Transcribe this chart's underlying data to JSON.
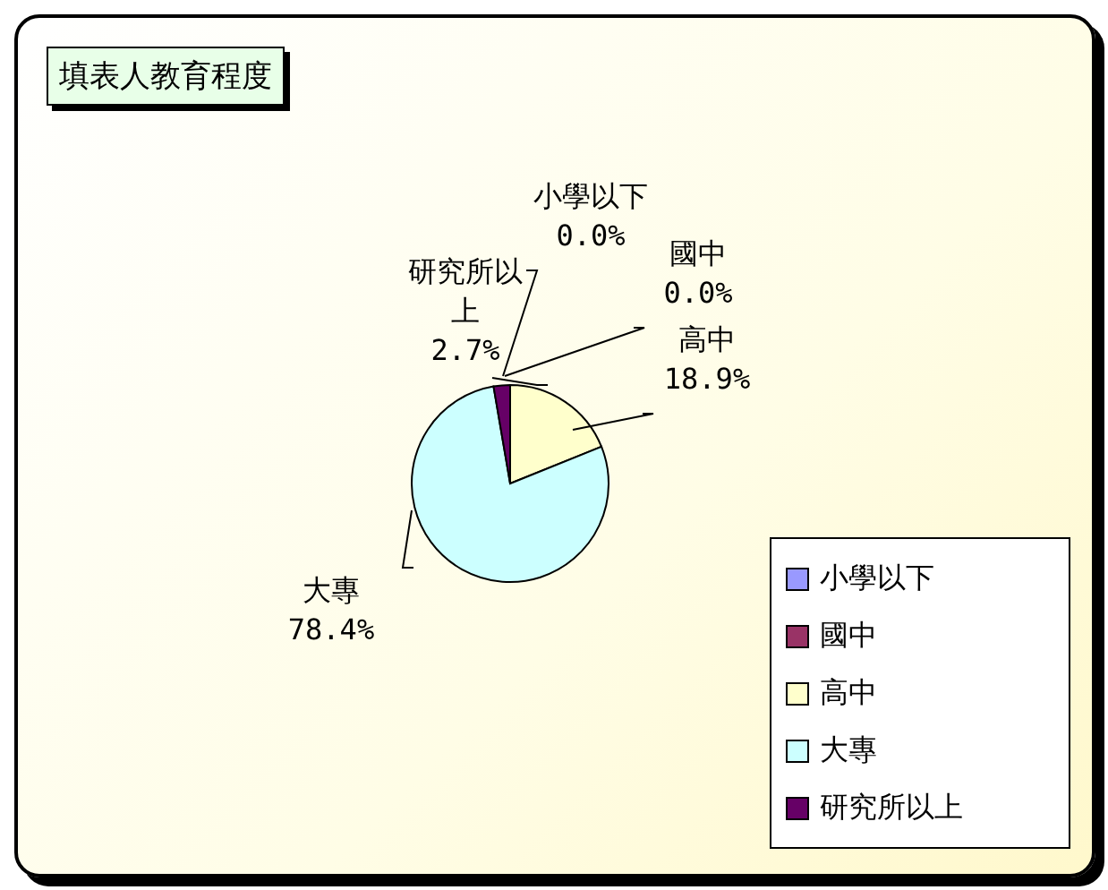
{
  "chart_data": {
    "type": "pie",
    "title": "填表人教育程度",
    "categories": [
      "小學以下",
      "國中",
      "高中",
      "大專",
      "研究所以上"
    ],
    "values": [
      0,
      0,
      18.9,
      78.4,
      2.7
    ],
    "value_labels": [
      "0.0%",
      "0.0%",
      "18.9%",
      "78.4%",
      "2.7%"
    ],
    "colors": [
      "#9999ff",
      "#993366",
      "#ffffcc",
      "#ccffff",
      "#660066"
    ],
    "legend": "bottom right"
  }
}
